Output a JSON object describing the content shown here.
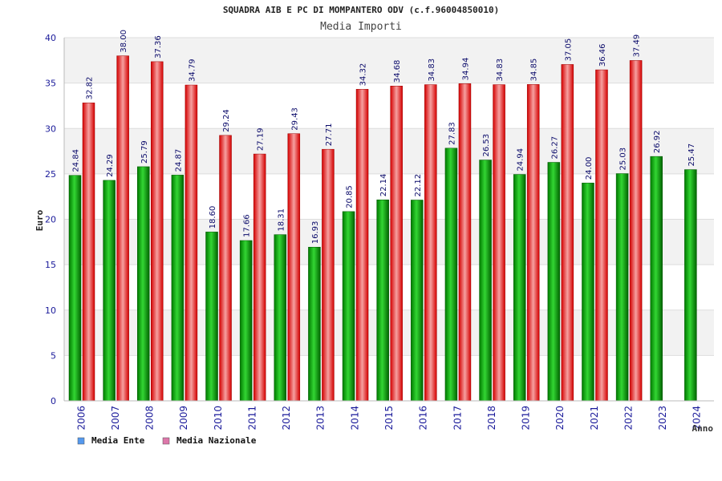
{
  "chart_data": {
    "type": "bar",
    "title": "SQUADRA AIB E PC DI MOMPANTERO ODV (c.f.96004850010)",
    "subtitle": "Media Importi",
    "ylabel": "Euro",
    "xlabel": "Anno",
    "ylim": [
      0,
      40
    ],
    "yticks": [
      0,
      5,
      10,
      15,
      20,
      25,
      30,
      35,
      40
    ],
    "grid": true,
    "legend_position": "bottom-left",
    "categories": [
      "2006",
      "2007",
      "2008",
      "2009",
      "2010",
      "2011",
      "2012",
      "2013",
      "2014",
      "2015",
      "2016",
      "2017",
      "2018",
      "2019",
      "2020",
      "2021",
      "2022",
      "2023",
      "2024"
    ],
    "series": [
      {
        "name": "Media Ente",
        "color": "#00a000",
        "legend_color": "#5599ee",
        "values": [
          24.84,
          24.29,
          25.79,
          24.87,
          18.6,
          17.66,
          18.31,
          16.93,
          20.85,
          22.14,
          22.12,
          27.83,
          26.53,
          24.94,
          26.27,
          24.0,
          25.03,
          26.92,
          25.47
        ],
        "labels": [
          "24.84",
          "24.29",
          "25.79",
          "24.87",
          "18.60",
          "17.66",
          "18.31",
          "16.93",
          "20.85",
          "22.14",
          "22.12",
          "27.83",
          "26.53",
          "24.94",
          "26.27",
          "24.00",
          "25.03",
          "26.92",
          "25.47"
        ]
      },
      {
        "name": "Media Nazionale",
        "color": "#e01818",
        "legend_color": "#dd77aa",
        "values": [
          32.82,
          38.0,
          37.36,
          34.79,
          29.24,
          27.19,
          29.43,
          27.71,
          34.32,
          34.68,
          34.83,
          34.94,
          34.83,
          34.85,
          37.05,
          36.46,
          37.49,
          null,
          null
        ],
        "labels": [
          "32.82",
          "38.00",
          "37.36",
          "34.79",
          "29.24",
          "27.19",
          "29.43",
          "27.71",
          "34.32",
          "34.68",
          "34.83",
          "34.94",
          "34.83",
          "34.85",
          "37.05",
          "36.46",
          "37.49",
          null,
          null
        ]
      }
    ]
  }
}
